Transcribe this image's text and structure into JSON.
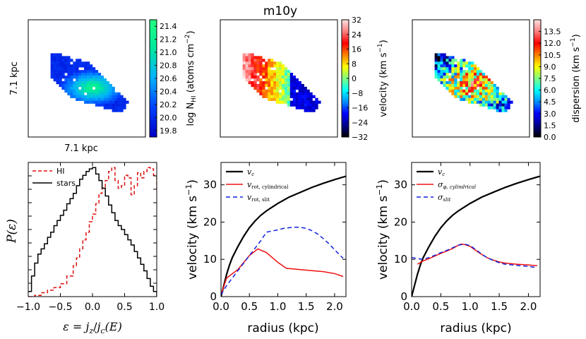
{
  "figure_title": "m10y",
  "colors": {
    "hi": "#dd1111",
    "stars": "#000000",
    "vc": "#000000",
    "cyl": "#ee1111",
    "slit": "#1122dd"
  },
  "chart_data": [
    {
      "type": "heatmap",
      "panel": "hi-column-density-map",
      "xlabel": "7.1 kpc",
      "ylabel": "7.1 kpc",
      "colorbar_label": "log N_HI (atoms cm^-2)",
      "colorbar_label_text": {
        "pre": "log N",
        "sub": "HI",
        "mid": " (atoms cm",
        "sup": "−2",
        "post": ")"
      },
      "colorbar_ticks": [
        "21.4",
        "21.2",
        "21.0",
        "20.8",
        "20.6",
        "20.4",
        "20.2",
        "20.0",
        "19.8"
      ],
      "colorbar_range": [
        19.7,
        21.5
      ],
      "colormap": [
        "#0000c8",
        "#0040ff",
        "#00b0ff",
        "#00e8a0",
        "#20ff80"
      ]
    },
    {
      "type": "heatmap",
      "panel": "velocity-map",
      "colorbar_label": "velocity (km s^-1)",
      "colorbar_label_text": {
        "pre": "velocity (km s",
        "sup": "−1",
        "post": ")"
      },
      "colorbar_ticks": [
        "32",
        "24",
        "16",
        "8",
        "0",
        "−8",
        "−16",
        "−24",
        "−32"
      ],
      "colorbar_range": [
        -32,
        32
      ],
      "colormap": [
        "#000000",
        "#000090",
        "#0000ff",
        "#0090ff",
        "#00ffff",
        "#80ff80",
        "#ffff00",
        "#ff8000",
        "#ff0000",
        "#ff8080",
        "#ffe0e0"
      ]
    },
    {
      "type": "heatmap",
      "panel": "dispersion-map",
      "colorbar_label": "dispersion (km s^-1)",
      "colorbar_label_text": {
        "pre": "dispersion (km s",
        "sup": "−1",
        "post": ")"
      },
      "colorbar_ticks": [
        "13.5",
        "12.0",
        "10.5",
        "9.0",
        "7.5",
        "6.0",
        "4.5",
        "3.0",
        "1.5",
        "0.0"
      ],
      "colorbar_range": [
        0,
        15
      ],
      "colormap": [
        "#000000",
        "#000090",
        "#0000ff",
        "#0090ff",
        "#00ffff",
        "#80ff80",
        "#ffff00",
        "#ff8000",
        "#ff0000",
        "#ff8080",
        "#ffe0e0"
      ]
    },
    {
      "type": "line",
      "panel": "circularity-distribution",
      "xlabel": "ε = j_z / j_c(E)",
      "xlabel_text": {
        "eps": "ε",
        "eq": " = ",
        "j": "j",
        "z": "z",
        "slash": "/",
        "jc": "j",
        "c": "c",
        "E": "(E)"
      },
      "ylabel": "P(ε)",
      "xlim": [
        -1.0,
        1.0
      ],
      "ylim": [
        0,
        1.0
      ],
      "xticks": [
        "−1.0",
        "−0.5",
        "0.0",
        "0.5",
        "1.0"
      ],
      "legend": "top-left",
      "series": [
        {
          "name": "HI",
          "style": "dashed",
          "x": [
            -1.0,
            -0.9,
            -0.8,
            -0.7,
            -0.6,
            -0.5,
            -0.4,
            -0.3,
            -0.25,
            -0.2,
            -0.15,
            -0.1,
            -0.05,
            0.0,
            0.05,
            0.1,
            0.15,
            0.2,
            0.25,
            0.3,
            0.35,
            0.4,
            0.45,
            0.5,
            0.55,
            0.6,
            0.65,
            0.7,
            0.75,
            0.8,
            0.85,
            0.9,
            0.95,
            1.0
          ],
          "y": [
            0.0,
            0.01,
            0.03,
            0.05,
            0.07,
            0.1,
            0.16,
            0.24,
            0.3,
            0.37,
            0.44,
            0.5,
            0.58,
            0.64,
            0.72,
            0.8,
            0.84,
            0.9,
            0.97,
            1.0,
            0.9,
            0.84,
            0.86,
            0.94,
            0.92,
            0.79,
            0.86,
            0.96,
            0.92,
            0.97,
            1.0,
            0.99,
            0.94,
            0.83
          ]
        },
        {
          "name": "stars",
          "style": "solid",
          "x": [
            -1.0,
            -0.95,
            -0.9,
            -0.85,
            -0.8,
            -0.75,
            -0.7,
            -0.65,
            -0.6,
            -0.55,
            -0.5,
            -0.45,
            -0.4,
            -0.35,
            -0.3,
            -0.25,
            -0.2,
            -0.15,
            -0.1,
            -0.05,
            0.0,
            0.05,
            0.1,
            0.15,
            0.2,
            0.25,
            0.3,
            0.35,
            0.4,
            0.45,
            0.5,
            0.55,
            0.6,
            0.65,
            0.7,
            0.75,
            0.8,
            0.85,
            0.9,
            0.95,
            1.0
          ],
          "y": [
            0.04,
            0.16,
            0.26,
            0.33,
            0.37,
            0.41,
            0.46,
            0.5,
            0.55,
            0.59,
            0.63,
            0.67,
            0.72,
            0.76,
            0.8,
            0.86,
            0.91,
            0.94,
            0.97,
            0.99,
            1.0,
            0.95,
            0.9,
            0.84,
            0.78,
            0.71,
            0.65,
            0.59,
            0.55,
            0.52,
            0.48,
            0.44,
            0.4,
            0.35,
            0.3,
            0.25,
            0.2,
            0.14,
            0.08,
            0.04,
            0.0
          ]
        }
      ]
    },
    {
      "type": "line",
      "panel": "rotation-curve",
      "xlabel": "radius (kpc)",
      "ylabel": "velocity (km s^-1)",
      "ylabel_text": {
        "pre": "velocity (km s",
        "sup": "−1",
        "post": ")"
      },
      "xlim": [
        0,
        2.2
      ],
      "ylim": [
        0,
        36
      ],
      "xticks": [
        "0.0",
        "0.5",
        "1.0",
        "1.5",
        "2.0"
      ],
      "yticks": [
        "0",
        "10",
        "20",
        "30"
      ],
      "legend": "top-left",
      "series": [
        {
          "name": "v_c",
          "legend_text": {
            "base": "v",
            "sub": "c"
          },
          "style": "solid-thick",
          "x": [
            0.0,
            0.05,
            0.1,
            0.15,
            0.2,
            0.3,
            0.4,
            0.5,
            0.6,
            0.7,
            0.8,
            0.9,
            1.0,
            1.2,
            1.4,
            1.6,
            1.8,
            2.0,
            2.2
          ],
          "y": [
            0.0,
            3.0,
            6.0,
            8.5,
            10.5,
            13.5,
            16.2,
            18.5,
            20.3,
            21.8,
            23.0,
            24.0,
            25.0,
            26.7,
            28.0,
            29.3,
            30.4,
            31.4,
            32.3
          ]
        },
        {
          "name": "v_rot, cylindrical",
          "legend_text": {
            "base": "v",
            "sub": "rot, cylindrical"
          },
          "style": "solid",
          "x": [
            0.0,
            0.1,
            0.3,
            0.5,
            0.65,
            0.8,
            1.0,
            1.15,
            1.5,
            1.8,
            2.0,
            2.15
          ],
          "y": [
            0.5,
            5.0,
            7.3,
            11.0,
            12.8,
            11.8,
            9.2,
            7.6,
            7.1,
            6.7,
            6.2,
            5.4
          ]
        },
        {
          "name": "v_rot, slit",
          "legend_text": {
            "base": "v",
            "sub": "rot, slit"
          },
          "style": "dashed",
          "x": [
            0.0,
            0.1,
            0.2,
            0.3,
            0.4,
            0.5,
            0.6,
            0.7,
            0.8,
            0.9,
            1.0,
            1.1,
            1.2,
            1.3,
            1.4,
            1.5,
            1.6,
            1.7,
            1.8,
            1.9,
            2.0,
            2.1,
            2.15
          ],
          "y": [
            0.5,
            3.0,
            5.0,
            7.0,
            9.0,
            11.0,
            13.0,
            15.0,
            17.3,
            17.6,
            17.9,
            18.3,
            18.5,
            18.6,
            18.6,
            18.3,
            17.7,
            16.8,
            15.6,
            14.2,
            12.6,
            11.0,
            10.3
          ]
        }
      ]
    },
    {
      "type": "line",
      "panel": "dispersion-profile",
      "xlabel": "radius (kpc)",
      "ylabel": "velocity (km s^-1)",
      "ylabel_text": {
        "pre": "velocity (km s",
        "sup": "−1",
        "post": ")"
      },
      "xlim": [
        0,
        2.2
      ],
      "ylim": [
        0,
        36
      ],
      "xticks": [
        "0.0",
        "0.5",
        "1.0",
        "1.5",
        "2.0"
      ],
      "yticks": [
        "0",
        "10",
        "20",
        "30"
      ],
      "legend": "top-left",
      "series": [
        {
          "name": "v_c",
          "legend_text": {
            "base": "v",
            "sub": "c"
          },
          "style": "solid-thick",
          "x": [
            0.0,
            0.05,
            0.1,
            0.15,
            0.2,
            0.3,
            0.4,
            0.5,
            0.6,
            0.7,
            0.8,
            0.9,
            1.0,
            1.2,
            1.4,
            1.6,
            1.8,
            2.0,
            2.2
          ],
          "y": [
            0.0,
            3.0,
            6.0,
            8.5,
            10.5,
            13.5,
            16.2,
            18.5,
            20.3,
            21.8,
            23.0,
            24.0,
            25.0,
            26.7,
            28.0,
            29.3,
            30.4,
            31.4,
            32.3
          ]
        },
        {
          "name": "σ_φ, cylindrical",
          "legend_text": {
            "base": "σ",
            "sub": "φ, cylindrical"
          },
          "style": "solid",
          "x": [
            0.1,
            0.2,
            0.3,
            0.4,
            0.5,
            0.6,
            0.7,
            0.8,
            0.85,
            0.9,
            1.0,
            1.1,
            1.2,
            1.3,
            1.4,
            1.5,
            1.6,
            1.8,
            2.0,
            2.15
          ],
          "y": [
            8.7,
            9.6,
            10.2,
            10.9,
            11.6,
            12.2,
            12.9,
            13.8,
            14.1,
            14.0,
            13.5,
            12.4,
            11.3,
            10.4,
            9.8,
            9.3,
            9.0,
            8.7,
            8.5,
            8.3
          ]
        },
        {
          "name": "σ_slit",
          "legend_text": {
            "base": "σ",
            "sub": "slit"
          },
          "style": "dashed",
          "x": [
            0.0,
            0.1,
            0.2,
            0.3,
            0.4,
            0.5,
            0.6,
            0.7,
            0.8,
            0.9,
            1.0,
            1.1,
            1.2,
            1.3,
            1.4,
            1.5,
            1.6,
            1.8,
            2.0,
            2.15
          ],
          "y": [
            10.5,
            10.2,
            10.0,
            10.5,
            11.1,
            11.8,
            12.4,
            13.1,
            13.8,
            14.1,
            13.7,
            12.6,
            11.4,
            10.4,
            9.7,
            9.1,
            8.7,
            8.4,
            8.1,
            7.8
          ]
        }
      ]
    }
  ]
}
